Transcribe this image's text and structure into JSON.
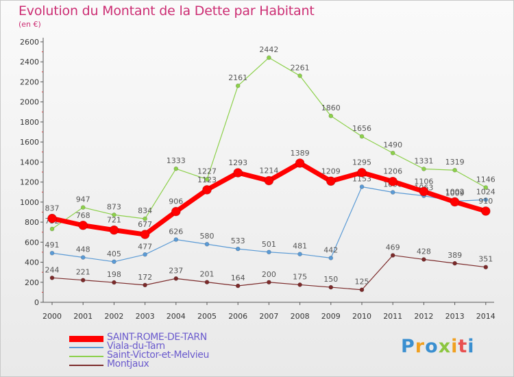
{
  "title": "Evolution du Montant de la Dette par Habitant",
  "subtitle": "(en €)",
  "logo": {
    "letters": [
      "P",
      "r",
      "o",
      "x",
      "i",
      "t",
      "i"
    ],
    "colors": [
      "#3a8fd0",
      "#f0a020",
      "#3a8fd0",
      "#8cc63f",
      "#f0a020",
      "#e85050",
      "#3a8fd0"
    ]
  },
  "chart_data": {
    "type": "line",
    "title": "Evolution du Montant de la Dette par Habitant",
    "ylabel": "(en €)",
    "xlabel": "",
    "ylim": [
      0,
      2600
    ],
    "yticks": [
      0,
      200,
      400,
      600,
      800,
      1000,
      1200,
      1400,
      1600,
      1800,
      2000,
      2200,
      2400,
      2600
    ],
    "grid": false,
    "legend_position": "bottom-left",
    "categories": [
      "2000",
      "2001",
      "2002",
      "2003",
      "2004",
      "2005",
      "2006",
      "2007",
      "2008",
      "2009",
      "2010",
      "2011",
      "2012",
      "2013",
      "2014"
    ],
    "series": [
      {
        "name": "Montjaux",
        "color": "#7b2a2a",
        "width": 1.2,
        "values": [
          244,
          221,
          198,
          172,
          237,
          201,
          164,
          200,
          175,
          150,
          125,
          469,
          428,
          389,
          351
        ],
        "labels": [
          "244",
          "221",
          "198",
          "172",
          "237",
          "201",
          "164",
          "200",
          "175",
          "150",
          "125",
          "469",
          "428",
          "389",
          "351"
        ]
      },
      {
        "name": "Viala-du-Tarn",
        "color": "#5a9ad5",
        "width": 1.2,
        "values": [
          491,
          448,
          405,
          477,
          626,
          580,
          533,
          501,
          481,
          442,
          1153,
          1098,
          1063,
          1009,
          1024
        ],
        "labels": [
          "491",
          "448",
          "405",
          "477",
          "626",
          "580",
          "533",
          "501",
          "481",
          "442",
          "1153",
          "1098",
          "1063",
          "1009",
          "1024"
        ]
      },
      {
        "name": "Saint-Victor-et-Melvieu",
        "color": "#8cd04a",
        "width": 1.2,
        "values": [
          732,
          947,
          873,
          834,
          1333,
          1227,
          2161,
          2442,
          2261,
          1860,
          1656,
          1490,
          1331,
          1319,
          1146
        ],
        "labels": [
          "732",
          "947",
          "873",
          "834",
          "1333",
          "1227",
          "2161",
          "2442",
          "2261",
          "1860",
          "1656",
          "1490",
          "1331",
          "1319",
          "1146"
        ]
      },
      {
        "name": "SAINT-ROME-DE-TARN",
        "color": "#ff0000",
        "width": 7,
        "values": [
          837,
          768,
          721,
          677,
          906,
          1123,
          1293,
          1214,
          1389,
          1209,
          1295,
          1206,
          1106,
          1002,
          910
        ],
        "labels": [
          "837",
          "768",
          "721",
          "677",
          "906",
          "1123",
          "1293",
          "1214",
          "1389",
          "1209",
          "1295",
          "1206",
          "1106",
          "1002",
          "910"
        ]
      }
    ],
    "legend": [
      {
        "name": "SAINT-ROME-DE-TARN",
        "color": "#ff0000"
      },
      {
        "name": "Viala-du-Tarn",
        "color": "#5a9ad5"
      },
      {
        "name": "Saint-Victor-et-Melvieu",
        "color": "#8cd04a"
      },
      {
        "name": "Montjaux",
        "color": "#7b2a2a"
      }
    ]
  }
}
